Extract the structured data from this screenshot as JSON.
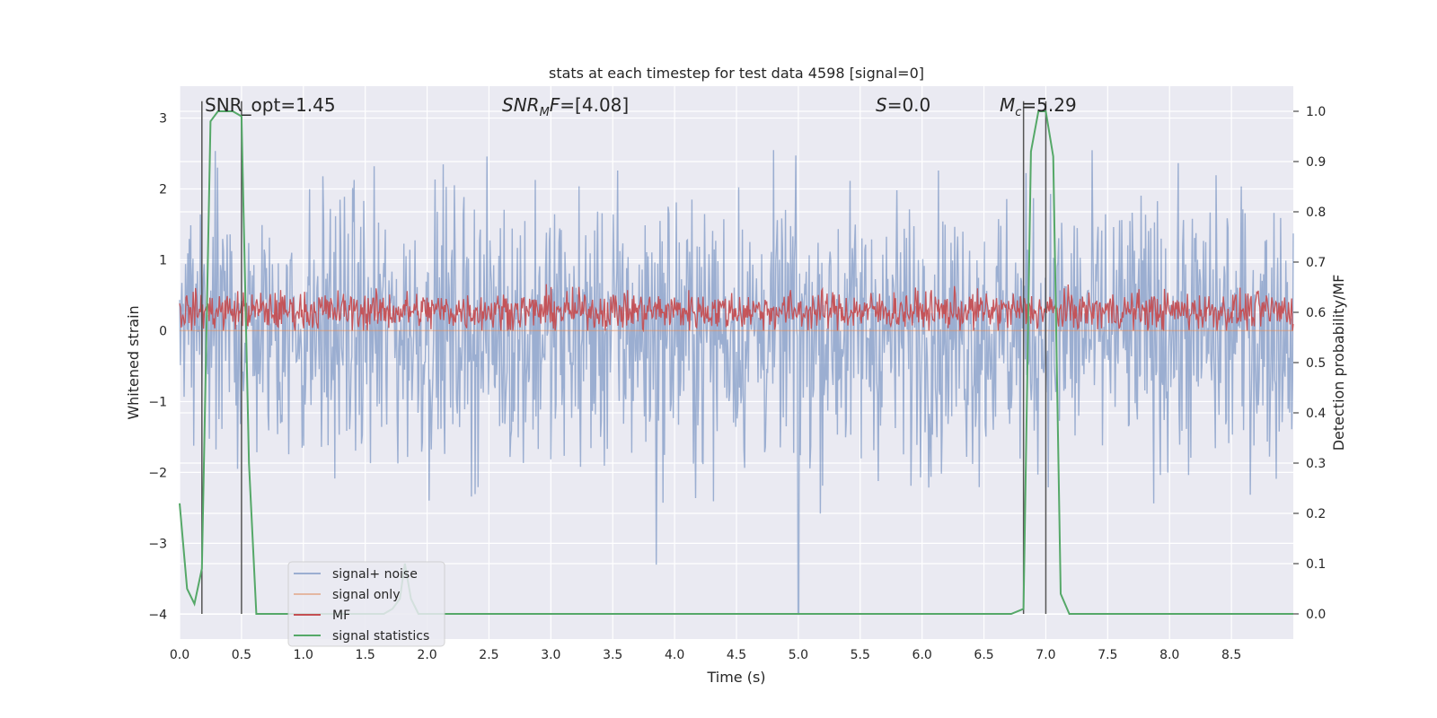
{
  "chart_data": {
    "type": "line",
    "title": "stats at each timestep for test data 4598 [signal=0]",
    "xlabel": "Time (s)",
    "ylabel": "Whitened strain",
    "y2label": "Detection probability/MF",
    "xlim": [
      0.0,
      9.0
    ],
    "ylim": [
      -4.35,
      3.45
    ],
    "y2lim": [
      -0.05,
      1.05
    ],
    "xticks": [
      "0.0",
      "0.5",
      "1.0",
      "1.5",
      "2.0",
      "2.5",
      "3.0",
      "3.5",
      "4.0",
      "4.5",
      "5.0",
      "5.5",
      "6.0",
      "6.5",
      "7.0",
      "7.5",
      "8.0",
      "8.5"
    ],
    "yticks": [
      "−4",
      "−3",
      "−2",
      "−1",
      "0",
      "1",
      "2",
      "3"
    ],
    "y2ticks": [
      "0.0",
      "0.1",
      "0.2",
      "0.3",
      "0.4",
      "0.5",
      "0.6",
      "0.7",
      "0.8",
      "0.9",
      "1.0"
    ],
    "grid": true,
    "legend_position": "lower-left",
    "annotations": {
      "snr_opt": "SNR_opt=1.45",
      "snr_mf_italic": "SNR",
      "snr_mf_sub": "M",
      "snr_mf_italic2": "F",
      "snr_mf_rest": "=[4.08]",
      "s_italic": "S",
      "s_rest": "=0.0",
      "mc_italic": "M",
      "mc_sub": "c",
      "mc_rest": "=5.29"
    },
    "vlines_x": [
      0.18,
      0.5,
      6.82,
      7.0
    ],
    "series": [
      {
        "name": "signal+ noise",
        "color": "#4c72b0",
        "axis": "left",
        "kind": "noise",
        "amplitude_y": [
          -2.6,
          2.9
        ]
      },
      {
        "name": "signal only",
        "color": "#dd8452",
        "axis": "left",
        "kind": "flat",
        "y": 0.0
      },
      {
        "name": "MF",
        "color": "#c44e52",
        "axis": "left",
        "kind": "noise",
        "amplitude_y": [
          0.0,
          0.95
        ]
      },
      {
        "name": "signal statistics",
        "color": "#55a868",
        "axis": "right",
        "kind": "line",
        "x": [
          0.0,
          0.06,
          0.12,
          0.18,
          0.25,
          0.31,
          0.37,
          0.43,
          0.5,
          0.56,
          0.62,
          0.68,
          1.5,
          1.65,
          1.72,
          1.78,
          1.82,
          1.87,
          1.93,
          6.72,
          6.82,
          6.88,
          6.94,
          7.0,
          7.06,
          7.12,
          7.19,
          7.25,
          9.0
        ],
        "y": [
          0.22,
          0.05,
          0.02,
          0.09,
          0.98,
          1.0,
          1.0,
          1.0,
          0.99,
          0.3,
          0.0,
          0.0,
          0.0,
          0.0,
          0.01,
          0.03,
          0.1,
          0.03,
          0.0,
          0.0,
          0.01,
          0.92,
          1.0,
          1.0,
          0.91,
          0.04,
          0.0,
          0.0,
          0.0
        ]
      }
    ]
  }
}
